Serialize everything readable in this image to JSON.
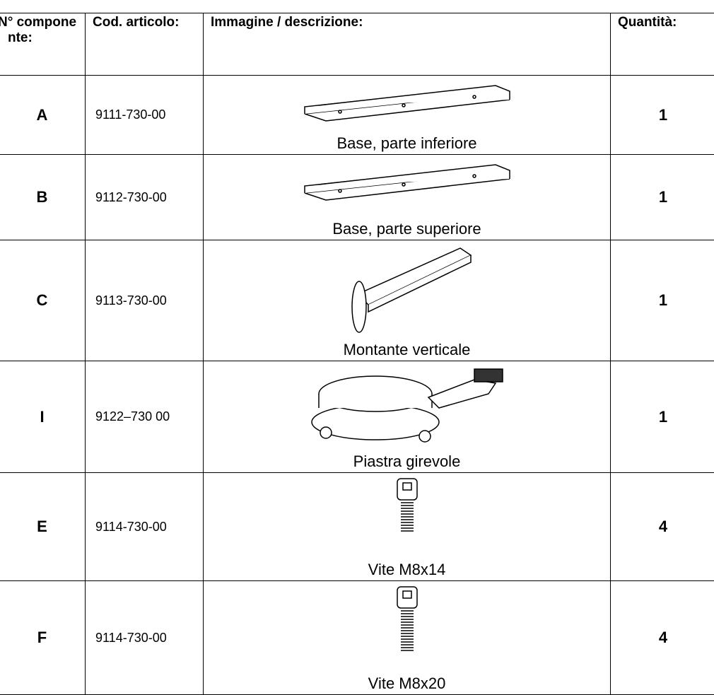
{
  "table": {
    "header": [
      "N° componente:",
      "Cod. articolo:",
      "Immagine / descrizione:",
      "Quantità:"
    ],
    "rows": [
      [
        "A",
        "9111-730-00",
        "Base, parte inferiore",
        1
      ],
      [
        "B",
        "9112-730-00",
        "Base, parte superiore",
        1
      ],
      [
        "C",
        "9113-730-00",
        "Montante verticale",
        1
      ],
      [
        "I",
        "9122–730 00",
        "Piastra girevole",
        1
      ],
      [
        "E",
        "9114-730-00",
        "Vite M8x14",
        4
      ],
      [
        "F",
        "9114-730-00",
        "Vite M8x20",
        4
      ]
    ]
  }
}
